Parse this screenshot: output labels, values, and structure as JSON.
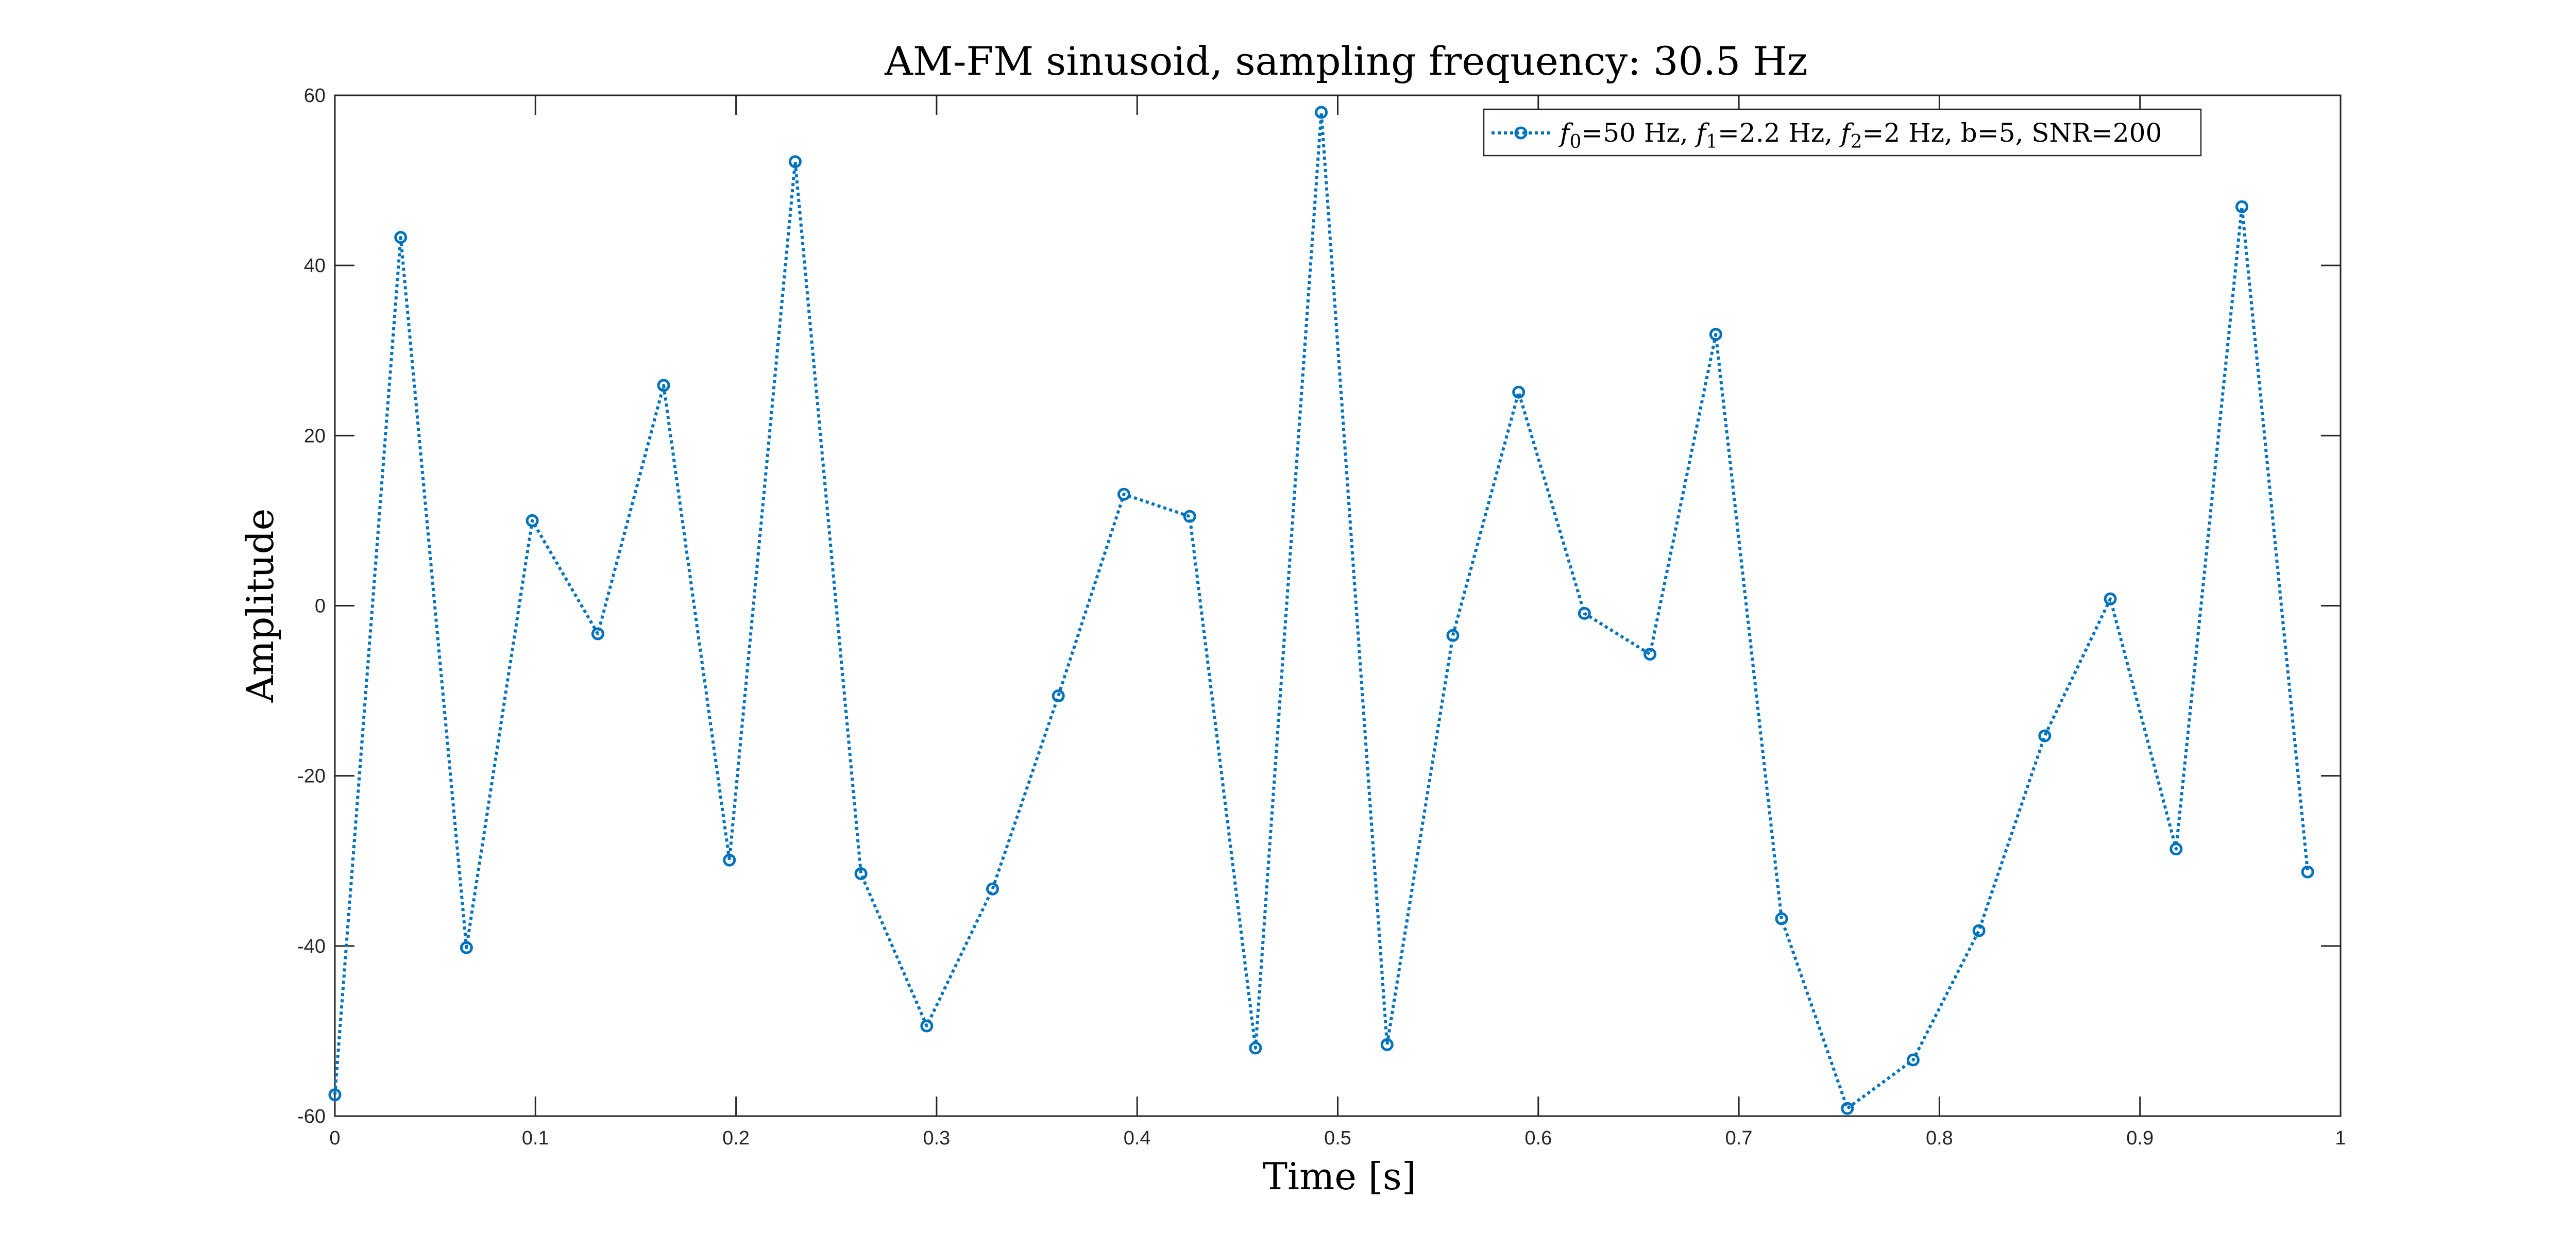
{
  "chart_data": {
    "type": "line",
    "title": "AM-FM sinusoid, sampling frequency: 30.5 Hz",
    "xlabel": "Time [s]",
    "ylabel": "Amplitude",
    "xlim": [
      0,
      1
    ],
    "ylim": [
      -60,
      60
    ],
    "x_ticks": [
      "0",
      "0.1",
      "0.2",
      "0.3",
      "0.4",
      "0.5",
      "0.6",
      "0.7",
      "0.8",
      "0.9",
      "1"
    ],
    "y_ticks": [
      "60",
      "40",
      "20",
      "0",
      "-20",
      "-40",
      "-60"
    ],
    "grid": false,
    "legend_position": "top-right",
    "series": [
      {
        "legend": {
          "f0_symbol": "f",
          "f0_sub": "0",
          "f0_text": "=50 Hz, ",
          "f1_symbol": "f",
          "f1_sub": "1",
          "f1_text": "=2.2 Hz, ",
          "f2_symbol": "f",
          "f2_sub": "2",
          "f2_text": "=2 Hz, b=5, SNR=200"
        },
        "color": "#0072BD",
        "line_style": "dotted",
        "marker": "circle",
        "x": [
          0,
          0.0328,
          0.0656,
          0.0984,
          0.1311,
          0.1639,
          0.1967,
          0.2295,
          0.2623,
          0.2951,
          0.3279,
          0.3607,
          0.3934,
          0.4262,
          0.459,
          0.4918,
          0.5246,
          0.5574,
          0.5902,
          0.623,
          0.6557,
          0.6885,
          0.7213,
          0.7541,
          0.7869,
          0.8197,
          0.8525,
          0.8852,
          0.918,
          0.9508,
          0.9836
        ],
        "y": [
          -57.5,
          43.3,
          -40.2,
          10.0,
          -3.3,
          25.9,
          -29.9,
          52.2,
          -31.5,
          -49.4,
          -33.3,
          -10.6,
          13.1,
          10.5,
          -52.0,
          58.0,
          -51.6,
          -3.5,
          25.1,
          -0.9,
          -5.7,
          31.9,
          -36.8,
          -59.1,
          -53.4,
          -38.2,
          -15.3,
          0.8,
          -28.6,
          46.9,
          -31.3
        ]
      }
    ]
  }
}
